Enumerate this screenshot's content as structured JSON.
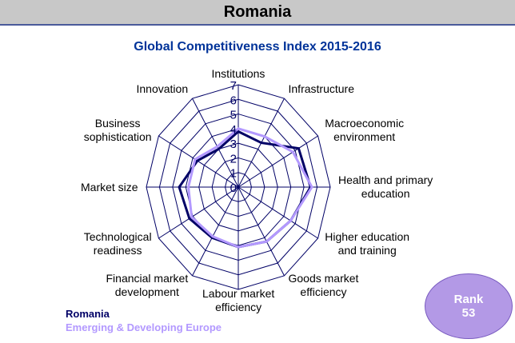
{
  "header": "Romania",
  "rank_label": "Rank",
  "rank": 53,
  "chart_data": {
    "type": "radar",
    "title": "Global Competitiveness Index 2015-2016",
    "categories": [
      "Institutions",
      "Infrastructure",
      "Macroeconomic\nenvironment",
      "Health and primary\neducation",
      "Higher education\nand training",
      "Goods market\nefficiency",
      "Labour market\nefficiency",
      "Financial market\ndevelopment",
      "Technological\nreadiness",
      "Market size",
      "Business\nsophistication",
      "Innovation"
    ],
    "series": [
      {
        "name": "Romania",
        "color": "#000066",
        "values": [
          3.8,
          3.5,
          5.3,
          5.5,
          4.6,
          4.3,
          4.1,
          4.0,
          4.3,
          4.5,
          3.6,
          3.0
        ]
      },
      {
        "name": "Emerging & Developing Europe",
        "color": "#b399ff",
        "values": [
          4.0,
          4.0,
          4.8,
          5.6,
          4.6,
          4.3,
          4.1,
          3.9,
          4.1,
          3.8,
          3.8,
          3.2
        ]
      }
    ],
    "rlim": [
      0,
      7
    ],
    "rticks": [
      0,
      1,
      2,
      3,
      4,
      5,
      6,
      7
    ],
    "grid": true
  }
}
